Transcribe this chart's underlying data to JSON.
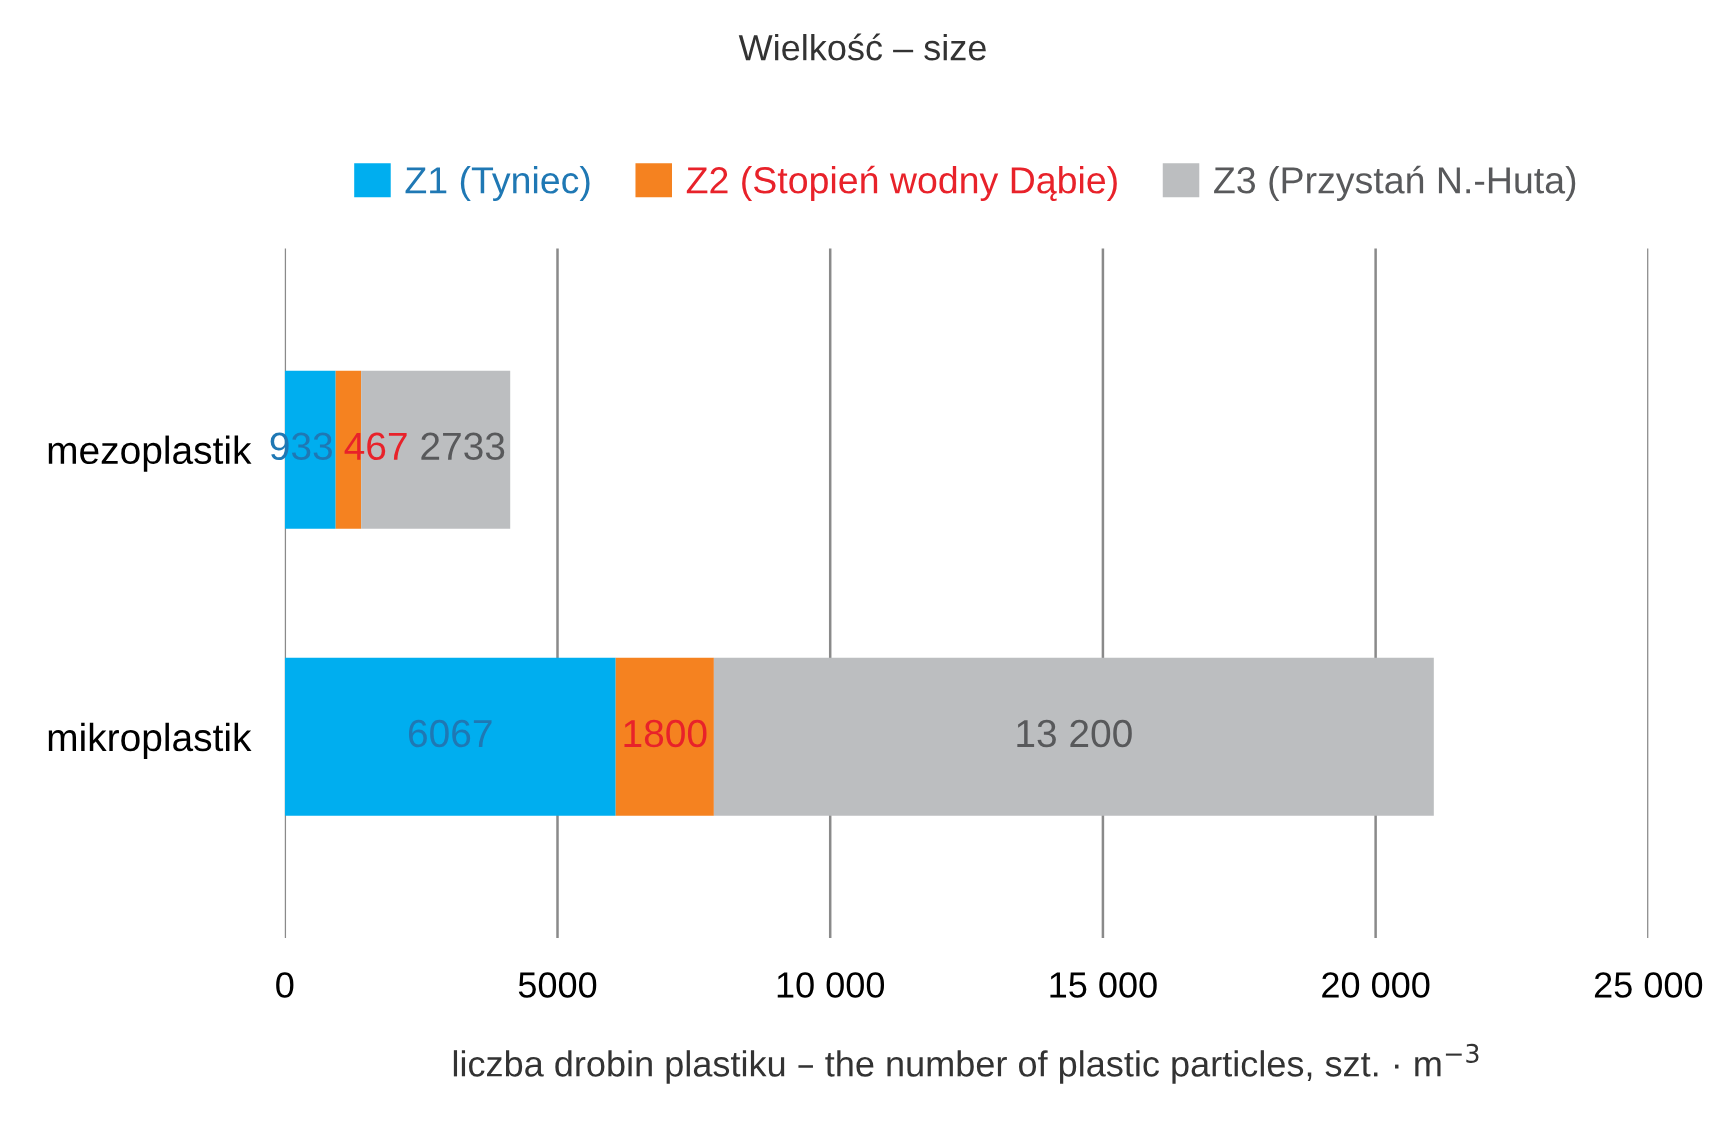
{
  "chart_data": {
    "type": "bar",
    "orientation": "horizontal",
    "stacked": true,
    "title": "Wielkość – size",
    "xlabel": "liczba drobin plastiku – the number of plastic particles, szt. · m$^{−3}$",
    "categories": [
      "mezoplastik",
      "mikroplastik"
    ],
    "series": [
      {
        "name": "Z1 (Tyniec)",
        "color": "#00aeef",
        "values": [
          933,
          6067
        ],
        "value_labels": [
          "933",
          "6067"
        ]
      },
      {
        "name": "Z2 (Stopień wodny Dąbie)",
        "color": "#f58220",
        "values": [
          467,
          1800
        ],
        "value_labels": [
          "467",
          "1800"
        ]
      },
      {
        "name": "Z3 (Przystań N.-Huta)",
        "color": "#bcbec0",
        "values": [
          2733,
          13200
        ],
        "value_labels": [
          "2733",
          "13 200"
        ]
      }
    ],
    "xlim": [
      0,
      25000
    ],
    "xticks": [
      0,
      5000,
      {
        "value": 10000,
        "label": "10 000"
      },
      {
        "value": 15000,
        "label": "15 000"
      },
      {
        "value": 20000,
        "label": "20 000"
      },
      {
        "value": 25000,
        "label": "25 000"
      }
    ],
    "grid": "x",
    "legend": "top"
  }
}
